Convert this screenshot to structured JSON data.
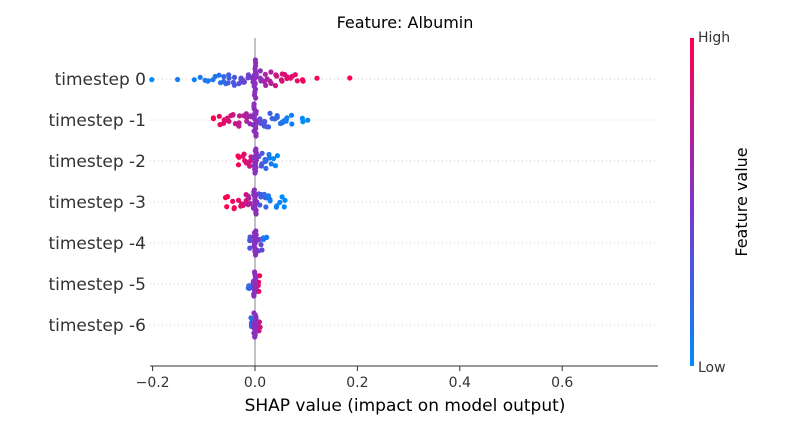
{
  "chart_data": {
    "type": "scatter",
    "subtype": "shap-beeswarm",
    "title": "Feature: Albumin",
    "xlabel": "SHAP value (impact on model output)",
    "xlim": [
      -0.2,
      0.78
    ],
    "xticks": [
      "−0.2",
      "0.0",
      "0.2",
      "0.4",
      "0.6"
    ],
    "xtick_values": [
      -0.2,
      0.0,
      0.2,
      0.4,
      0.6
    ],
    "colorbar": {
      "label": "Feature value",
      "high": "High",
      "low": "Low",
      "high_color": "#ff0052",
      "low_color": "#008bfb"
    },
    "grid": "dotted horizontal row lines",
    "categories": [
      "timestep 0",
      "timestep -1",
      "timestep -2",
      "timestep -3",
      "timestep -4",
      "timestep -5",
      "timestep -6"
    ],
    "series": [
      {
        "category": "timestep 0",
        "min": -0.2,
        "max": 0.185,
        "points": [
          [
            -0.2,
            0
          ],
          [
            -0.155,
            0.1
          ],
          [
            -0.12,
            0.05
          ],
          [
            -0.11,
            0.1
          ],
          [
            -0.1,
            0.15
          ],
          [
            -0.09,
            0.1
          ],
          [
            -0.08,
            0.12
          ],
          [
            -0.07,
            0.15
          ],
          [
            -0.06,
            0.2
          ],
          [
            -0.05,
            0.25
          ],
          [
            -0.04,
            0.3
          ],
          [
            -0.03,
            0.35
          ],
          [
            -0.02,
            0.4
          ],
          [
            -0.01,
            0.45
          ],
          [
            0,
            0.5
          ],
          [
            0.01,
            0.55
          ],
          [
            0.02,
            0.65
          ],
          [
            0.03,
            0.7
          ],
          [
            0.04,
            0.8
          ],
          [
            0.05,
            0.85
          ],
          [
            0.06,
            0.85
          ],
          [
            0.07,
            0.9
          ],
          [
            0.08,
            0.9
          ],
          [
            0.09,
            0.95
          ],
          [
            0.125,
            0.95
          ],
          [
            0.185,
            1
          ]
        ]
      },
      {
        "category": "timestep -1",
        "min": -0.08,
        "max": 0.1,
        "points": [
          [
            -0.08,
            1
          ],
          [
            -0.07,
            0.95
          ],
          [
            -0.06,
            0.9
          ],
          [
            -0.05,
            0.85
          ],
          [
            -0.04,
            0.8
          ],
          [
            -0.03,
            0.75
          ],
          [
            -0.02,
            0.7
          ],
          [
            -0.01,
            0.6
          ],
          [
            0,
            0.5
          ],
          [
            0.01,
            0.35
          ],
          [
            0.02,
            0.3
          ],
          [
            0.03,
            0.25
          ],
          [
            0.04,
            0.2
          ],
          [
            0.05,
            0.15
          ],
          [
            0.06,
            0.1
          ],
          [
            0.07,
            0.05
          ],
          [
            0.09,
            0
          ],
          [
            0.1,
            0
          ]
        ]
      },
      {
        "category": "timestep -2",
        "min": -0.03,
        "max": 0.04,
        "points": [
          [
            -0.03,
            1
          ],
          [
            -0.02,
            0.9
          ],
          [
            -0.01,
            0.8
          ],
          [
            0,
            0.5
          ],
          [
            0.01,
            0.3
          ],
          [
            0.02,
            0.2
          ],
          [
            0.03,
            0.1
          ],
          [
            0.04,
            0
          ]
        ]
      },
      {
        "category": "timestep -3",
        "min": -0.055,
        "max": 0.055,
        "points": [
          [
            -0.055,
            1
          ],
          [
            -0.04,
            0.95
          ],
          [
            -0.03,
            0.9
          ],
          [
            -0.02,
            0.85
          ],
          [
            -0.01,
            0.7
          ],
          [
            0,
            0.5
          ],
          [
            0.01,
            0.3
          ],
          [
            0.02,
            0.2
          ],
          [
            0.03,
            0.1
          ],
          [
            0.045,
            0.05
          ],
          [
            0.055,
            0
          ]
        ]
      },
      {
        "category": "timestep -4",
        "min": -0.01,
        "max": 0.02,
        "points": [
          [
            -0.01,
            0.3
          ],
          [
            0,
            0.55
          ],
          [
            0.01,
            0.4
          ],
          [
            0.02,
            0.1
          ]
        ]
      },
      {
        "category": "timestep -5",
        "min": -0.01,
        "max": 0.01,
        "points": [
          [
            -0.01,
            0.2
          ],
          [
            0,
            0.55
          ],
          [
            0.01,
            0.95
          ]
        ]
      },
      {
        "category": "timestep -6",
        "min": -0.01,
        "max": 0.01,
        "points": [
          [
            -0.01,
            0.2
          ],
          [
            0,
            0.55
          ],
          [
            0.01,
            0.8
          ]
        ]
      }
    ]
  }
}
